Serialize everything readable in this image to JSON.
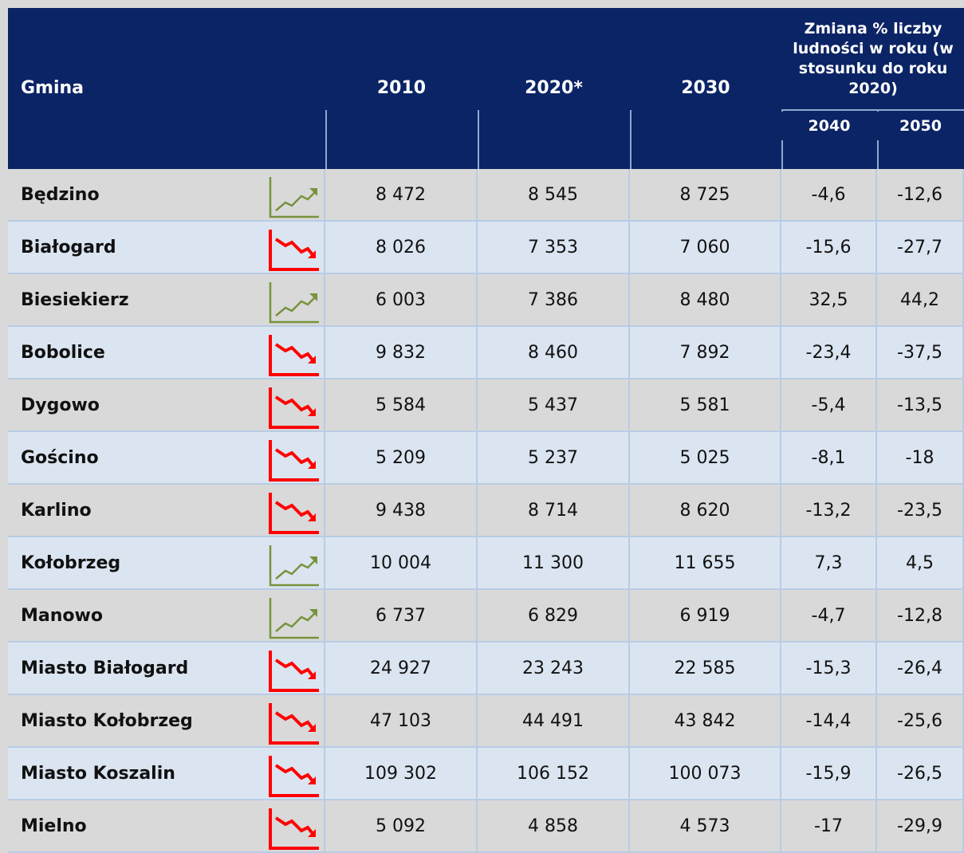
{
  "table": {
    "header": {
      "gmina": "Gmina",
      "years": [
        "2010",
        "2020*",
        "2030"
      ],
      "change": "Zmiana % liczby ludności w roku (w stosunku do roku 2020)",
      "change_years": [
        "2040",
        "2050"
      ]
    },
    "rows": [
      {
        "name": "Będzino",
        "trend": "up",
        "values": [
          "8 472",
          "8 545",
          "8 725",
          "-4,6",
          "-12,6"
        ]
      },
      {
        "name": "Białogard",
        "trend": "down",
        "values": [
          "8 026",
          "7 353",
          "7 060",
          "-15,6",
          "-27,7"
        ]
      },
      {
        "name": "Biesiekierz",
        "trend": "up",
        "values": [
          "6 003",
          "7 386",
          "8 480",
          "32,5",
          "44,2"
        ]
      },
      {
        "name": "Bobolice",
        "trend": "down",
        "values": [
          "9 832",
          "8 460",
          "7 892",
          "-23,4",
          "-37,5"
        ]
      },
      {
        "name": "Dygowo",
        "trend": "down",
        "values": [
          "5 584",
          "5 437",
          "5 581",
          "-5,4",
          "-13,5"
        ]
      },
      {
        "name": "Gościno",
        "trend": "down",
        "values": [
          "5 209",
          "5 237",
          "5 025",
          "-8,1",
          "-18"
        ]
      },
      {
        "name": "Karlino",
        "trend": "down",
        "values": [
          "9 438",
          "8 714",
          "8 620",
          "-13,2",
          "-23,5"
        ]
      },
      {
        "name": "Kołobrzeg",
        "trend": "up",
        "values": [
          "10 004",
          "11 300",
          "11 655",
          "7,3",
          "4,5"
        ]
      },
      {
        "name": "Manowo",
        "trend": "up",
        "values": [
          "6 737",
          "6 829",
          "6 919",
          "-4,7",
          "-12,8"
        ]
      },
      {
        "name": "Miasto Białogard",
        "trend": "down",
        "values": [
          "24 927",
          "23 243",
          "22 585",
          "-15,3",
          "-26,4"
        ]
      },
      {
        "name": "Miasto Kołobrzeg",
        "trend": "down",
        "values": [
          "47 103",
          "44 491",
          "43 842",
          "-14,4",
          "-25,6"
        ]
      },
      {
        "name": "Miasto Koszalin",
        "trend": "down",
        "values": [
          "109 302",
          "106 152",
          "100 073",
          "-15,9",
          "-26,5"
        ]
      },
      {
        "name": "Mielno",
        "trend": "down",
        "values": [
          "5 092",
          "4 858",
          "4 573",
          "-17",
          "-29,9"
        ]
      }
    ]
  }
}
